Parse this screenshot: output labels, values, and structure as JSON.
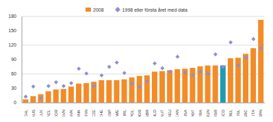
{
  "chart_data": {
    "type": "bar",
    "categories": [
      "CHL",
      "AUS",
      "LUX",
      "NZL",
      "KOR",
      "SVN",
      "SVK",
      "DNK",
      "FIN",
      "CZE",
      "CHE",
      "ESP",
      "SWE",
      "IRL",
      "POL",
      "NOR",
      "GBR",
      "NLD",
      "AUT",
      "DEU",
      "CAN",
      "USA",
      "PRT",
      "FRA",
      "HUN",
      "ISR",
      "OECD",
      "BEL",
      "ISL",
      "GRC",
      "ITA",
      "JPN"
    ],
    "series": [
      {
        "name": "2008",
        "type": "bar",
        "colors": [
          "#f28c28",
          "#f28c28",
          "#f28c28",
          "#f28c28",
          "#f28c28",
          "#f28c28",
          "#f28c28",
          "#f28c28",
          "#f28c28",
          "#f28c28",
          "#f28c28",
          "#f28c28",
          "#f28c28",
          "#f28c28",
          "#f28c28",
          "#f28c28",
          "#f28c28",
          "#f28c28",
          "#f28c28",
          "#f28c28",
          "#f28c28",
          "#f28c28",
          "#f28c28",
          "#f28c28",
          "#f28c28",
          "#f28c28",
          "#1f9bb0",
          "#f28c28",
          "#f28c28",
          "#f28c28",
          "#f28c28",
          "#f28c28"
        ],
        "color": "#f28c28",
        "values": [
          7,
          14,
          18,
          24,
          28,
          29,
          34,
          40,
          41,
          44,
          47,
          47,
          47,
          49,
          53,
          56,
          57,
          65,
          66,
          68,
          70,
          71,
          73,
          76,
          78,
          78,
          78,
          93,
          94,
          102,
          114,
          173
        ]
      },
      {
        "name": "1998 eller första året med data",
        "type": "scatter",
        "marker": "diamond",
        "color": "#8e8fd0",
        "values": [
          13,
          34,
          10,
          35,
          43,
          35,
          41,
          71,
          61,
          35,
          57,
          75,
          84,
          62,
          40,
          33,
          45,
          82,
          72,
          65,
          96,
          63,
          57,
          65,
          60,
          101,
          75,
          126,
          78,
          94,
          133,
          114
        ]
      }
    ],
    "ylim": [
      0,
      180
    ],
    "yticks": [
      0,
      30,
      60,
      90,
      120,
      150,
      180
    ],
    "grid": true,
    "legend": "top"
  }
}
